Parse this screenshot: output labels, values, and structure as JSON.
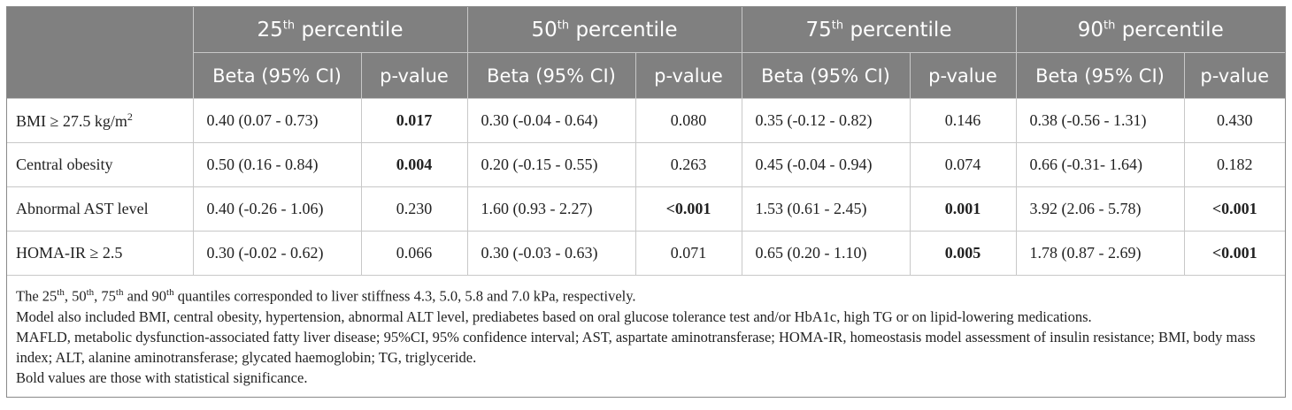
{
  "header": {
    "percentiles": [
      {
        "num": "25",
        "suffix": "th",
        "label": "percentile"
      },
      {
        "num": "50",
        "suffix": "th",
        "label": "percentile"
      },
      {
        "num": "75",
        "suffix": "th",
        "label": "percentile"
      },
      {
        "num": "90",
        "suffix": "th",
        "label": "percentile"
      }
    ],
    "beta_label": "Beta (95% CI)",
    "pvalue_label": "p-value"
  },
  "rows": [
    {
      "label": "BMI ≥ 27.5 kg/m",
      "label_sup": "2",
      "cells": [
        {
          "beta": "0.40 (0.07 - 0.73)",
          "p": "0.017",
          "bold": true
        },
        {
          "beta": "0.30 (-0.04 - 0.64)",
          "p": "0.080",
          "bold": false
        },
        {
          "beta": "0.35 (-0.12 - 0.82)",
          "p": "0.146",
          "bold": false
        },
        {
          "beta": "0.38 (-0.56 - 1.31)",
          "p": "0.430",
          "bold": false
        }
      ]
    },
    {
      "label": "Central obesity",
      "label_sup": "",
      "cells": [
        {
          "beta": "0.50 (0.16 - 0.84)",
          "p": "0.004",
          "bold": true
        },
        {
          "beta": "0.20 (-0.15 - 0.55)",
          "p": "0.263",
          "bold": false
        },
        {
          "beta": "0.45 (-0.04 - 0.94)",
          "p": "0.074",
          "bold": false
        },
        {
          "beta": "0.66 (-0.31- 1.64)",
          "p": "0.182",
          "bold": false
        }
      ]
    },
    {
      "label": "Abnormal AST level",
      "label_sup": "",
      "cells": [
        {
          "beta": "0.40 (-0.26 - 1.06)",
          "p": "0.230",
          "bold": false
        },
        {
          "beta": "1.60 (0.93 - 2.27)",
          "p": "<0.001",
          "bold": true
        },
        {
          "beta": "1.53 (0.61 - 2.45)",
          "p": "0.001",
          "bold": true
        },
        {
          "beta": "3.92 (2.06 - 5.78)",
          "p": "<0.001",
          "bold": true
        }
      ]
    },
    {
      "label": "HOMA-IR ≥ 2.5",
      "label_sup": "",
      "cells": [
        {
          "beta": "0.30 (-0.02 - 0.62)",
          "p": "0.066",
          "bold": false
        },
        {
          "beta": "0.30 (-0.03 - 0.63)",
          "p": "0.071",
          "bold": false
        },
        {
          "beta": "0.65 (0.20 - 1.10)",
          "p": "0.005",
          "bold": true
        },
        {
          "beta": "1.78 (0.87 - 2.69)",
          "p": "<0.001",
          "bold": true
        }
      ]
    }
  ],
  "notes": {
    "line1": {
      "prefix": "The 25",
      "sup1": "th",
      "mid1": ", 50",
      "sup2": "th",
      "mid2": ", 75",
      "sup3": "th",
      "mid3": " and 90",
      "sup4": "th",
      "rest": " quantiles corresponded to liver stiffness 4.3, 5.0, 5.8 and 7.0 kPa, respectively."
    },
    "line2": "Model also included BMI, central obesity, hypertension, abnormal ALT level, prediabetes based on oral glucose tolerance test and/or HbA1c, high TG or on lipid-lowering medications.",
    "line3": "MAFLD, metabolic dysfunction-associated fatty liver disease; 95%CI, 95% confidence interval; AST, aspartate aminotransferase; HOMA-IR, homeostasis model assessment of insulin resistance; BMI, body mass index; ALT, alanine aminotransferase; glycated haemoglobin; TG, triglyceride.",
    "line4": "Bold values are those with statistical significance."
  }
}
